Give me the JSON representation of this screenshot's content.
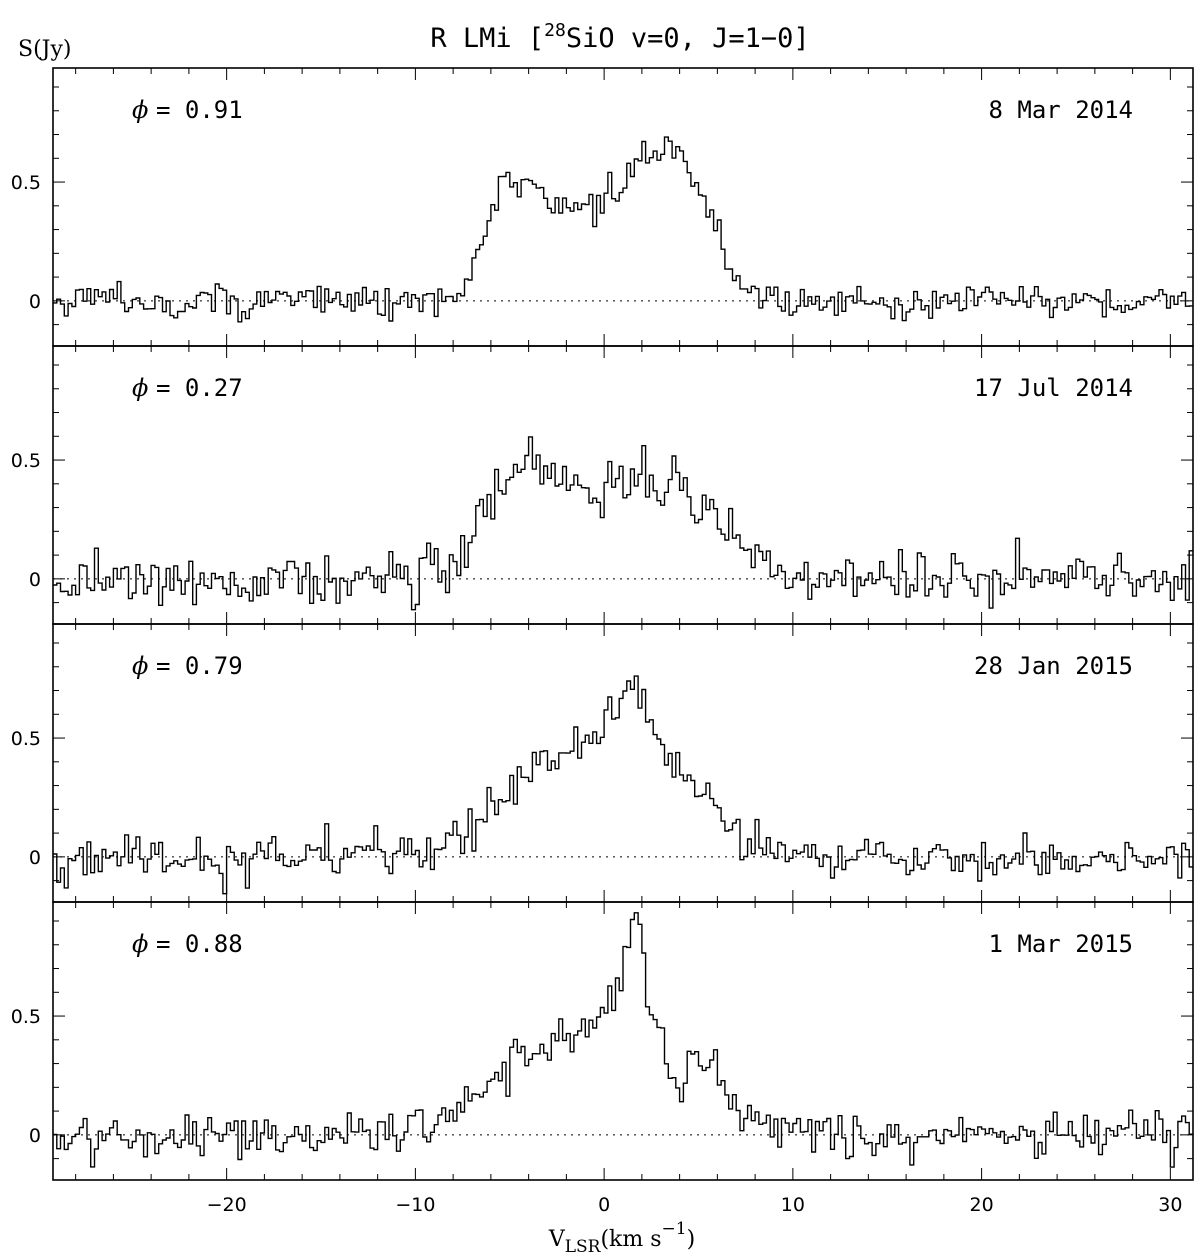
{
  "chart_data": {
    "type": "line",
    "title": "R LMi [",
    "title_sup": "28",
    "title_rest": "SiO v=0, J=1−0]",
    "ylabel": "S(Jy)",
    "xlabel_main": "V",
    "xlabel_sub": "LSR",
    "xlabel_rest": "(km s",
    "xlabel_exp": "−1",
    "xlabel_close": ")",
    "xlim": [
      -29.2,
      31.2
    ],
    "ylim": [
      -0.19,
      0.98
    ],
    "x_ticks": [
      -20,
      -10,
      0,
      10,
      20,
      30
    ],
    "x_tick_labels": [
      "−20",
      "−10",
      "0",
      "10",
      "20",
      "30"
    ],
    "y_ticks": [
      0,
      0.5
    ],
    "y_tick_labels": [
      "0",
      "0.5"
    ],
    "phase_prefix": "= ",
    "phase_symbol": "ϕ",
    "series": [
      {
        "phase": "0.91",
        "date": "8 Mar 2014",
        "profile": {
          "x": [
            -10,
            -7.4,
            -6.4,
            -5.2,
            -4.0,
            -3.0,
            -2.0,
            -1.0,
            0.0,
            1.0,
            1.8,
            2.8,
            3.8,
            4.8,
            5.6,
            6.4,
            7.2,
            8.6,
            10
          ],
          "y": [
            0,
            0.02,
            0.27,
            0.52,
            0.48,
            0.46,
            0.35,
            0.41,
            0.43,
            0.47,
            0.57,
            0.65,
            0.63,
            0.52,
            0.36,
            0.18,
            0.08,
            0.02,
            0
          ],
          "noise": 0.038
        }
      },
      {
        "phase": "0.27",
        "date": "17 Jul 2014",
        "profile": {
          "x": [
            -12,
            -9,
            -7.5,
            -6.2,
            -5.0,
            -4.2,
            -3.2,
            -2.2,
            -1.2,
            0.0,
            1.0,
            2.0,
            3.0,
            4.0,
            5.0,
            6.0,
            7.0,
            8.0,
            9.0,
            11
          ],
          "y": [
            0,
            0.02,
            0.08,
            0.27,
            0.42,
            0.55,
            0.47,
            0.39,
            0.34,
            0.33,
            0.4,
            0.47,
            0.36,
            0.38,
            0.34,
            0.25,
            0.17,
            0.1,
            0.04,
            0
          ],
          "noise": 0.055
        }
      },
      {
        "phase": "0.79",
        "date": "28 Jan 2015",
        "profile": {
          "x": [
            -12,
            -9,
            -7.5,
            -6.0,
            -4.5,
            -3.2,
            -2.0,
            -1.0,
            0.0,
            0.8,
            1.5,
            2.2,
            3.0,
            4.0,
            5.0,
            6.0,
            7.0,
            8.0,
            9.5,
            11
          ],
          "y": [
            0,
            0.02,
            0.07,
            0.2,
            0.32,
            0.4,
            0.44,
            0.47,
            0.53,
            0.62,
            0.74,
            0.62,
            0.48,
            0.36,
            0.3,
            0.18,
            0.1,
            0.05,
            0.01,
            0
          ],
          "noise": 0.045
        }
      },
      {
        "phase": "0.88",
        "date": "1 Mar 2015",
        "profile": {
          "x": [
            -14,
            -11,
            -9,
            -7.5,
            -6.0,
            -4.5,
            -3.0,
            -2.0,
            -1.0,
            0.0,
            0.7,
            1.3,
            1.7,
            2.3,
            3.2,
            3.8,
            4.6,
            5.6,
            6.5,
            7.5,
            9,
            11
          ],
          "y": [
            0,
            0.03,
            0.06,
            0.12,
            0.22,
            0.34,
            0.39,
            0.4,
            0.43,
            0.5,
            0.56,
            0.8,
            0.91,
            0.62,
            0.35,
            0.18,
            0.28,
            0.32,
            0.18,
            0.07,
            0.02,
            0
          ],
          "noise": 0.048
        }
      }
    ]
  }
}
